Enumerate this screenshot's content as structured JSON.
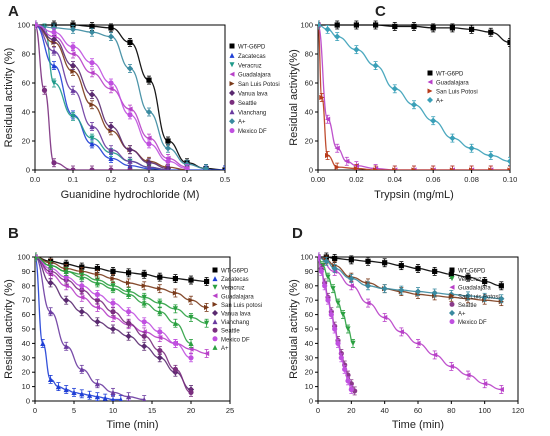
{
  "figure": {
    "panels": [
      {
        "letter": "A",
        "xlabel": "Guanidine hydrochloride (M)",
        "ylabel": "Residual activity (%)",
        "xlim": [
          0,
          0.5
        ],
        "ylim": [
          0,
          100
        ],
        "xticks": [
          "0.0",
          "0.1",
          "0.2",
          "0.3",
          "0.4",
          "0.5"
        ],
        "yticks": [
          "0",
          "20",
          "40",
          "60",
          "80",
          "100"
        ]
      },
      {
        "letter": "B",
        "xlabel": "Time (min)",
        "ylabel": "Residual activity (%)",
        "xlim": [
          0,
          25
        ],
        "ylim": [
          0,
          100
        ],
        "xticks": [
          "0",
          "5",
          "10",
          "15",
          "20",
          "25"
        ],
        "yticks": [
          "0",
          "10",
          "20",
          "30",
          "40",
          "50",
          "60",
          "70",
          "80",
          "90",
          "100"
        ]
      },
      {
        "letter": "C",
        "xlabel": "Trypsin (mg/mL)",
        "ylabel": "Residual activity(%)",
        "xlim": [
          0,
          0.1
        ],
        "ylim": [
          0,
          100
        ],
        "xticks": [
          "0.00",
          "0.02",
          "0.04",
          "0.06",
          "0.08",
          "0.10"
        ],
        "yticks": [
          "0",
          "20",
          "40",
          "60",
          "80",
          "100"
        ]
      },
      {
        "letter": "D",
        "xlabel": "Time (min)",
        "ylabel": "Residual activity (%)",
        "xlim": [
          0,
          120
        ],
        "ylim": [
          0,
          100
        ],
        "xticks": [
          "0",
          "20",
          "40",
          "60",
          "80",
          "100",
          "120"
        ],
        "yticks": [
          "0",
          "10",
          "20",
          "30",
          "40",
          "50",
          "60",
          "70",
          "80",
          "90",
          "100"
        ]
      }
    ]
  },
  "chart_data": [
    {
      "panel": "A",
      "type": "scatter",
      "legend_position": "right",
      "series": [
        {
          "name": "WT-G6PD",
          "color": "#000000",
          "marker": "square",
          "x": [
            0.0,
            0.05,
            0.1,
            0.15,
            0.2,
            0.25,
            0.3,
            0.35,
            0.4,
            0.45,
            0.5
          ],
          "y": [
            100,
            100,
            100,
            99,
            98,
            88,
            62,
            20,
            5,
            1,
            0
          ]
        },
        {
          "name": "Zacatecas",
          "color": "#1f3fd6",
          "marker": "triangle-up",
          "x": [
            0.0,
            0.05,
            0.1,
            0.15,
            0.2,
            0.25,
            0.3,
            0.35,
            0.4,
            0.45,
            0.5
          ],
          "y": [
            100,
            72,
            38,
            18,
            8,
            3,
            1,
            0,
            0,
            0,
            0
          ]
        },
        {
          "name": "Veracruz",
          "color": "#1f9a8a",
          "marker": "triangle-down",
          "x": [
            0.0,
            0.025,
            0.05,
            0.1,
            0.15,
            0.2,
            0.25,
            0.3,
            0.35
          ],
          "y": [
            100,
            98,
            60,
            37,
            22,
            12,
            6,
            2,
            0
          ]
        },
        {
          "name": "Guadalajara",
          "color": "#b840c8",
          "marker": "triangle-left",
          "x": [
            0.0,
            0.05,
            0.1,
            0.15,
            0.2,
            0.25,
            0.3,
            0.35,
            0.4
          ],
          "y": [
            100,
            92,
            80,
            67,
            56,
            42,
            22,
            8,
            2
          ]
        },
        {
          "name": "San Luis Potosi",
          "color": "#7a3a1a",
          "marker": "triangle-right",
          "x": [
            0.0,
            0.05,
            0.1,
            0.15,
            0.2,
            0.25,
            0.3,
            0.35,
            0.4
          ],
          "y": [
            100,
            88,
            68,
            45,
            27,
            14,
            6,
            2,
            0
          ]
        },
        {
          "name": "Vanua lava",
          "color": "#5a2a70",
          "marker": "diamond",
          "x": [
            0.0,
            0.05,
            0.1,
            0.15,
            0.2,
            0.25,
            0.3,
            0.35
          ],
          "y": [
            100,
            90,
            72,
            52,
            30,
            14,
            5,
            1
          ]
        },
        {
          "name": "Seattle",
          "color": "#7a2e7e",
          "marker": "circle",
          "x": [
            0.0,
            0.025,
            0.05,
            0.1,
            0.15,
            0.2,
            0.25
          ],
          "y": [
            100,
            55,
            5,
            0,
            0,
            0,
            0
          ]
        },
        {
          "name": "Vianchang",
          "color": "#6a3aa0",
          "marker": "triangle-up",
          "x": [
            0.0,
            0.05,
            0.1,
            0.15,
            0.2,
            0.25,
            0.3,
            0.35
          ],
          "y": [
            100,
            82,
            55,
            30,
            14,
            6,
            2,
            0
          ]
        },
        {
          "name": "A+",
          "color": "#3a8aa0",
          "marker": "diamond",
          "x": [
            0.0,
            0.05,
            0.1,
            0.15,
            0.2,
            0.25,
            0.3,
            0.35,
            0.4,
            0.45
          ],
          "y": [
            100,
            98,
            97,
            95,
            92,
            70,
            40,
            15,
            4,
            1
          ]
        },
        {
          "name": "Mexico DF",
          "color": "#c050e0",
          "marker": "circle",
          "x": [
            0.0,
            0.05,
            0.1,
            0.15,
            0.2,
            0.25,
            0.3,
            0.35,
            0.4
          ],
          "y": [
            100,
            95,
            85,
            74,
            60,
            38,
            18,
            6,
            1
          ]
        }
      ]
    },
    {
      "panel": "B",
      "type": "scatter",
      "legend_position": "right",
      "series": [
        {
          "name": "WT-G6PD",
          "color": "#000000",
          "marker": "square",
          "x": [
            0,
            2,
            4,
            6,
            8,
            10,
            12,
            14,
            16,
            18,
            20,
            22
          ],
          "y": [
            100,
            97,
            95,
            93,
            92,
            90,
            89,
            88,
            86,
            85,
            84,
            83
          ]
        },
        {
          "name": "Zacatecas",
          "color": "#1f3fd6",
          "marker": "triangle-up",
          "x": [
            0,
            1,
            2,
            3,
            4,
            5,
            6,
            7,
            8,
            9,
            10,
            11
          ],
          "y": [
            100,
            40,
            15,
            10,
            8,
            6,
            5,
            4,
            3,
            2,
            1,
            1
          ]
        },
        {
          "name": "Veracruz",
          "color": "#2aa040",
          "marker": "triangle-down",
          "x": [
            0,
            2,
            4,
            6,
            8,
            10,
            12,
            14,
            16,
            18,
            20,
            22
          ],
          "y": [
            100,
            94,
            90,
            88,
            84,
            80,
            76,
            72,
            68,
            64,
            58,
            54
          ]
        },
        {
          "name": "Guadalajara",
          "color": "#b840c8",
          "marker": "triangle-left",
          "x": [
            0,
            2,
            4,
            6,
            8,
            10,
            12,
            14,
            16,
            18,
            20,
            22
          ],
          "y": [
            100,
            88,
            80,
            72,
            65,
            58,
            53,
            48,
            44,
            40,
            36,
            33
          ]
        },
        {
          "name": "San Luis potosi",
          "color": "#7a3a1a",
          "marker": "triangle-right",
          "x": [
            0,
            2,
            4,
            6,
            8,
            10,
            12,
            14,
            16,
            18,
            20,
            22
          ],
          "y": [
            100,
            96,
            92,
            90,
            88,
            85,
            82,
            80,
            78,
            75,
            70,
            65
          ]
        },
        {
          "name": "Vanua lava",
          "color": "#5a2a70",
          "marker": "diamond",
          "x": [
            0,
            2,
            4,
            6,
            8,
            10,
            12,
            14,
            16,
            18,
            20
          ],
          "y": [
            100,
            82,
            70,
            62,
            55,
            50,
            45,
            38,
            30,
            20,
            8
          ]
        },
        {
          "name": "Vianchang",
          "color": "#6a3aa0",
          "marker": "triangle-up",
          "x": [
            0,
            2,
            4,
            6,
            8,
            10,
            12,
            14
          ],
          "y": [
            100,
            62,
            38,
            22,
            12,
            6,
            3,
            1
          ]
        },
        {
          "name": "Seattle",
          "color": "#7a2e7e",
          "marker": "circle",
          "x": [
            0,
            2,
            4,
            6,
            8,
            10,
            12,
            14,
            16,
            18,
            20
          ],
          "y": [
            100,
            90,
            84,
            77,
            70,
            62,
            54,
            45,
            35,
            22,
            6
          ]
        },
        {
          "name": "Mexico DF",
          "color": "#c050e0",
          "marker": "circle",
          "x": [
            0,
            2,
            4,
            6,
            8,
            10,
            12,
            14,
            16,
            18,
            20
          ],
          "y": [
            100,
            92,
            86,
            80,
            74,
            68,
            62,
            55,
            48,
            40,
            30
          ]
        },
        {
          "name": "A+",
          "color": "#2aa040",
          "marker": "triangle-up",
          "x": [
            0,
            2,
            4,
            6,
            8,
            10,
            12,
            14,
            16,
            18,
            20
          ],
          "y": [
            100,
            94,
            90,
            86,
            82,
            78,
            74,
            68,
            62,
            54,
            40
          ]
        }
      ]
    },
    {
      "panel": "C",
      "type": "scatter",
      "legend_position": "right",
      "series": [
        {
          "name": "WT-G6PD",
          "color": "#000000",
          "marker": "square",
          "x": [
            0.0,
            0.01,
            0.02,
            0.03,
            0.04,
            0.05,
            0.06,
            0.07,
            0.08,
            0.09,
            0.1
          ],
          "y": [
            100,
            100,
            100,
            100,
            99,
            99,
            98,
            98,
            97,
            95,
            88
          ]
        },
        {
          "name": "Guadalajara",
          "color": "#b840c8",
          "marker": "triangle-left",
          "x": [
            0.0,
            0.005,
            0.01,
            0.015,
            0.02,
            0.03,
            0.04,
            0.05,
            0.06,
            0.07,
            0.08,
            0.09,
            0.1
          ],
          "y": [
            100,
            35,
            15,
            6,
            3,
            1,
            0,
            0,
            0,
            0,
            0,
            0,
            0
          ]
        },
        {
          "name": "San Luis Potosi",
          "color": "#b83a1a",
          "marker": "triangle-right",
          "x": [
            0.0,
            0.002,
            0.005,
            0.01,
            0.02,
            0.03,
            0.04,
            0.05,
            0.06,
            0.07,
            0.08,
            0.09,
            0.1
          ],
          "y": [
            100,
            50,
            10,
            2,
            1,
            0,
            0,
            0,
            0,
            0,
            0,
            0,
            0
          ]
        },
        {
          "name": "A+",
          "color": "#3aa0b8",
          "marker": "diamond",
          "x": [
            0.0,
            0.005,
            0.01,
            0.02,
            0.03,
            0.04,
            0.05,
            0.06,
            0.07,
            0.08,
            0.09,
            0.1
          ],
          "y": [
            100,
            97,
            92,
            83,
            72,
            56,
            45,
            34,
            22,
            15,
            10,
            6
          ]
        }
      ]
    },
    {
      "panel": "D",
      "type": "scatter",
      "legend_position": "right",
      "series": [
        {
          "name": "WT-G6PD",
          "color": "#000000",
          "marker": "square",
          "x": [
            0,
            5,
            10,
            20,
            30,
            40,
            50,
            60,
            70,
            80,
            90,
            100,
            110
          ],
          "y": [
            100,
            100,
            99,
            98,
            97,
            96,
            94,
            92,
            90,
            88,
            86,
            83,
            80
          ]
        },
        {
          "name": "Veracruz",
          "color": "#2aa040",
          "marker": "triangle-down",
          "x": [
            0,
            3,
            6,
            9,
            12,
            15,
            18,
            21
          ],
          "y": [
            100,
            94,
            86,
            78,
            68,
            60,
            50,
            40
          ]
        },
        {
          "name": "Guadalajara",
          "color": "#b840c8",
          "marker": "triangle-left",
          "x": [
            0,
            10,
            20,
            30,
            40,
            50,
            60,
            70,
            80,
            90,
            100,
            110
          ],
          "y": [
            100,
            90,
            80,
            68,
            58,
            48,
            40,
            32,
            24,
            18,
            12,
            8
          ]
        },
        {
          "name": "San Luis Potosi",
          "color": "#7a3a1a",
          "marker": "triangle-right",
          "x": [
            0,
            5,
            10,
            20,
            30,
            40,
            50,
            60,
            70,
            80,
            90,
            100,
            110
          ],
          "y": [
            100,
            98,
            94,
            86,
            82,
            78,
            76,
            74,
            73,
            72,
            71,
            70,
            69
          ]
        },
        {
          "name": "Seattle",
          "color": "#8a3a8a",
          "marker": "circle",
          "x": [
            0,
            2,
            4,
            6,
            8,
            10,
            12,
            14,
            16,
            18,
            20,
            22
          ],
          "y": [
            100,
            92,
            82,
            72,
            62,
            52,
            42,
            33,
            25,
            18,
            12,
            7
          ]
        },
        {
          "name": "A+",
          "color": "#3a8aa0",
          "marker": "diamond",
          "x": [
            0,
            5,
            10,
            20,
            30,
            40,
            50,
            60,
            70,
            80,
            90,
            100,
            110
          ],
          "y": [
            100,
            97,
            92,
            85,
            80,
            78,
            77,
            76,
            75,
            74,
            73,
            72,
            71
          ]
        },
        {
          "name": "Mexico DF",
          "color": "#c050e0",
          "marker": "circle",
          "x": [
            0,
            2,
            4,
            6,
            8,
            10,
            12,
            14,
            16,
            18,
            20
          ],
          "y": [
            100,
            90,
            80,
            70,
            60,
            50,
            40,
            30,
            22,
            14,
            8
          ]
        }
      ]
    }
  ]
}
